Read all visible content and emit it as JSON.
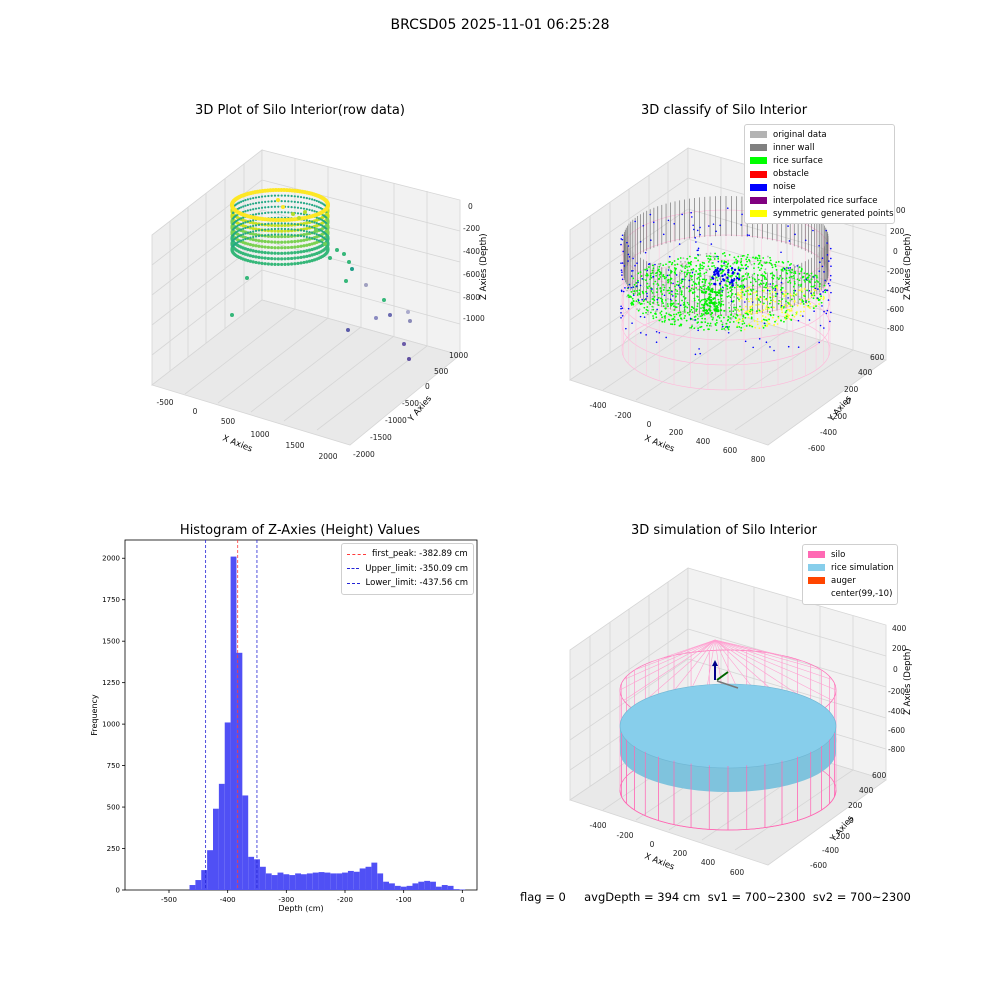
{
  "page": {
    "title": "BRCSD05 2025-11-01 06:25:28"
  },
  "panels": {
    "raw": {
      "title": "3D Plot of Silo Interior(row data)",
      "xlabel": "X Axies",
      "ylabel": "Y Axies",
      "zlabel": "Z Axies (Depth)",
      "xticks": [
        "-500",
        "0",
        "500",
        "1000",
        "1500",
        "2000"
      ],
      "yticks": [
        "-2000",
        "-1500",
        "-1000",
        "-500",
        "0",
        "500",
        "1000"
      ],
      "zticks": [
        "-1000",
        "-800",
        "-600",
        "-400",
        "-200",
        "0"
      ]
    },
    "classify": {
      "title": "3D classify of Silo Interior",
      "xlabel": "X Axies",
      "ylabel": "Y Axies",
      "zlabel": "Z Axies (Depth)",
      "xticks": [
        "-400",
        "-200",
        "0",
        "200",
        "400",
        "600",
        "800"
      ],
      "yticks": [
        "-600",
        "-400",
        "-200",
        "0",
        "200",
        "400",
        "600"
      ],
      "zticks": [
        "-800",
        "-600",
        "-400",
        "-200",
        "0",
        "200"
      ],
      "z_partial_tick": "00",
      "legend": [
        {
          "label": "original data",
          "color": "#b3b3b3"
        },
        {
          "label": "inner wall",
          "color": "#808080"
        },
        {
          "label": "rice surface",
          "color": "#00ff00"
        },
        {
          "label": "obstacle",
          "color": "#ff0000"
        },
        {
          "label": "noise",
          "color": "#0000ff"
        },
        {
          "label": "interpolated rice surface",
          "color": "#800080"
        },
        {
          "label": "symmetric generated points",
          "color": "#ffff00"
        }
      ]
    },
    "histogram": {
      "title": "Histogram of Z-Axies (Height) Values",
      "xlabel": "Depth (cm)",
      "ylabel": "Frequency",
      "bar_color": "#5050f5",
      "legend": [
        {
          "label": "first_peak: -382.89 cm",
          "color": "#ff3b3b"
        },
        {
          "label": "Upper_limit: -350.09 cm",
          "color": "#2424d6"
        },
        {
          "label": "Lower_limit: -437.56 cm",
          "color": "#2424d6"
        }
      ]
    },
    "simulation": {
      "title": "3D simulation of Silo Interior",
      "xlabel": "X Axies",
      "ylabel": "Y Axies",
      "zlabel": "Z Axies (Depth)",
      "xticks": [
        "-400",
        "-200",
        "0",
        "200",
        "400",
        "600"
      ],
      "yticks": [
        "-600",
        "-400",
        "-200",
        "0",
        "200",
        "400",
        "600"
      ],
      "zticks": [
        "-800",
        "-600",
        "-400",
        "-200",
        "0",
        "200",
        "400"
      ],
      "legend": [
        {
          "label": "silo",
          "color": "#ff69b4"
        },
        {
          "label": "rice simulation",
          "color": "#87ceeb"
        },
        {
          "label": "auger",
          "color": "#ff4500"
        },
        {
          "label": "center(99,-10)",
          "color": "#ffffff"
        }
      ]
    }
  },
  "footer": {
    "text": "flag = 0     avgDepth = 394 cm  sv1 = 700~2300  sv2 = 700~2300"
  },
  "chart_data": [
    {
      "type": "bar",
      "title": "Histogram of Z-Axies (Height) Values",
      "xlabel": "Depth (cm)",
      "ylabel": "Frequency",
      "xlim": [
        -575,
        25
      ],
      "ylim": [
        0,
        2110
      ],
      "xticks": [
        -500,
        -400,
        -300,
        -200,
        -100,
        0
      ],
      "yticks": [
        0,
        250,
        500,
        750,
        1000,
        1250,
        1500,
        1750,
        2000
      ],
      "bin_width": 10,
      "bin_edges_start": [
        -465,
        -455,
        -445,
        -435,
        -425,
        -415,
        -405,
        -395,
        -385,
        -375,
        -365,
        -355,
        -345,
        -335,
        -325,
        -315,
        -305,
        -295,
        -285,
        -275,
        -265,
        -255,
        -245,
        -235,
        -225,
        -215,
        -205,
        -195,
        -185,
        -175,
        -165,
        -155,
        -145,
        -135,
        -125,
        -115,
        -105,
        -95,
        -85,
        -75,
        -65,
        -55,
        -45,
        -35,
        -25,
        -15,
        -5
      ],
      "values": [
        30,
        60,
        120,
        240,
        490,
        640,
        1010,
        2010,
        1430,
        570,
        200,
        185,
        140,
        100,
        90,
        105,
        95,
        90,
        100,
        95,
        100,
        105,
        108,
        105,
        100,
        100,
        105,
        115,
        110,
        130,
        140,
        165,
        100,
        50,
        40,
        25,
        20,
        25,
        40,
        50,
        55,
        50,
        20,
        30,
        25,
        5,
        3
      ],
      "annotations": [
        {
          "label": "first_peak: -382.89 cm",
          "x": -382.89,
          "color": "#ff3b3b"
        },
        {
          "label": "Upper_limit: -350.09 cm",
          "x": -350.09,
          "color": "#2424d6"
        },
        {
          "label": "Lower_limit: -437.56 cm",
          "x": -437.56,
          "color": "#2424d6"
        }
      ]
    }
  ]
}
